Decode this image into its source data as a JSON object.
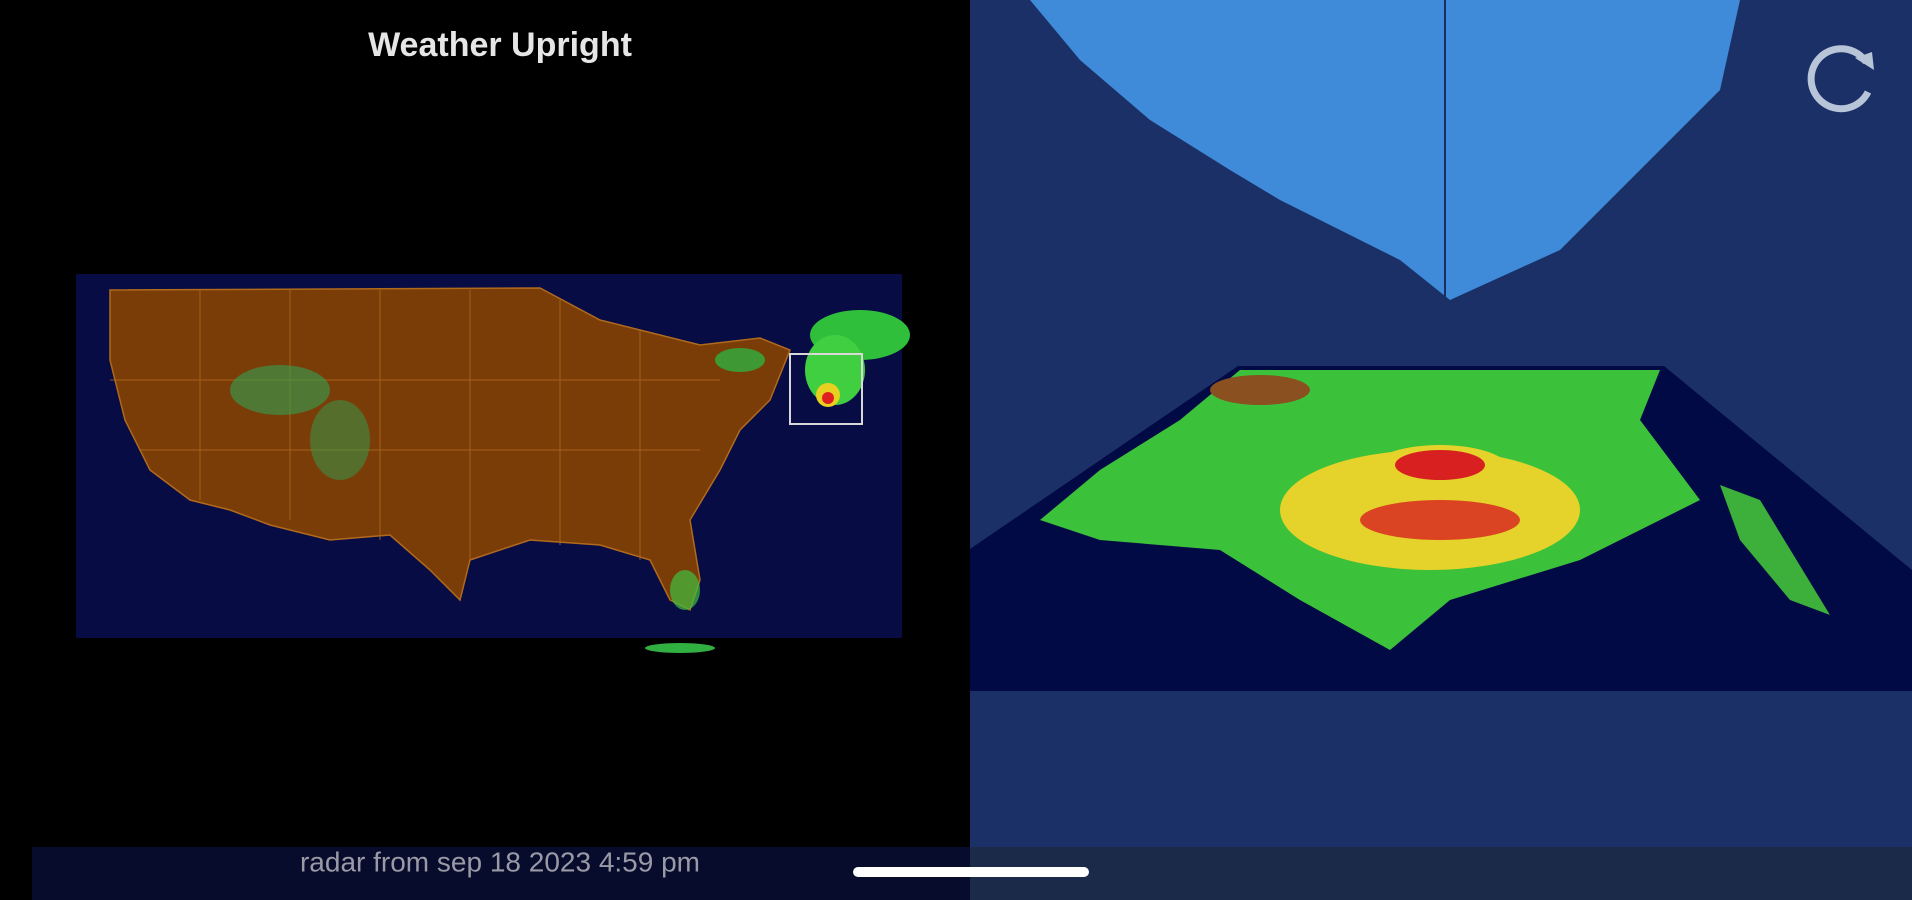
{
  "header": {
    "title": "Weather Upright"
  },
  "footer": {
    "caption": "radar from sep 18 2023 4:59 pm"
  }
}
